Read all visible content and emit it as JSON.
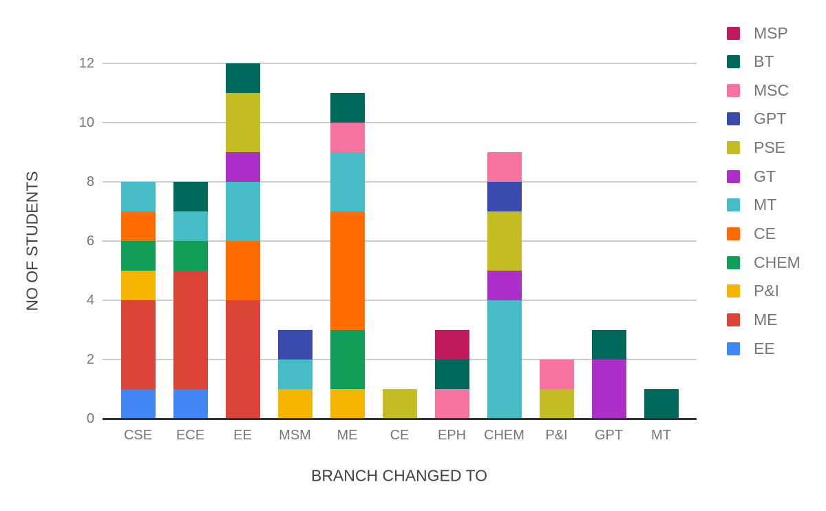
{
  "chart_data": {
    "type": "bar",
    "stacked": true,
    "title": "",
    "xlabel": "BRANCH CHANGED TO",
    "ylabel": "NO OF STUDENTS",
    "ylim": [
      0,
      12
    ],
    "yticks": [
      0,
      2,
      4,
      6,
      8,
      10,
      12
    ],
    "grid": true,
    "legend_position": "right",
    "legend_order_top_to_bottom": [
      "MSP",
      "BT",
      "MSC",
      "GPT",
      "PSE",
      "GT",
      "MT",
      "CE",
      "CHEM",
      "P&I",
      "ME",
      "EE"
    ],
    "categories": [
      "CSE",
      "ECE",
      "EE",
      "MSM",
      "ME",
      "CE",
      "EPH",
      "CHEM",
      "P&I",
      "GPT",
      "MT"
    ],
    "category_totals": [
      8,
      8,
      12,
      3,
      11,
      1,
      3,
      9,
      2,
      3,
      1
    ],
    "series": [
      {
        "name": "EE",
        "color": "#4285F4",
        "values": [
          1,
          1,
          0,
          0,
          0,
          0,
          0,
          0,
          0,
          0,
          0
        ]
      },
      {
        "name": "ME",
        "color": "#DB4437",
        "values": [
          3,
          4,
          4,
          0,
          0,
          0,
          0,
          0,
          0,
          0,
          0
        ]
      },
      {
        "name": "P&I",
        "color": "#F4B400",
        "values": [
          1,
          0,
          0,
          1,
          1,
          0,
          0,
          0,
          0,
          0,
          0
        ]
      },
      {
        "name": "CHEM",
        "color": "#0F9D58",
        "values": [
          1,
          1,
          0,
          0,
          2,
          0,
          0,
          0,
          0,
          0,
          0
        ]
      },
      {
        "name": "CE",
        "color": "#FF6D01",
        "values": [
          1,
          0,
          2,
          0,
          4,
          0,
          0,
          0,
          0,
          0,
          0
        ]
      },
      {
        "name": "MT",
        "color": "#46BDC6",
        "values": [
          1,
          1,
          2,
          1,
          2,
          0,
          0,
          4,
          0,
          0,
          0
        ]
      },
      {
        "name": "GT",
        "color": "#AB2FC8",
        "values": [
          0,
          0,
          1,
          0,
          0,
          0,
          0,
          1,
          0,
          2,
          0
        ]
      },
      {
        "name": "PSE",
        "color": "#C3BD23",
        "values": [
          0,
          0,
          2,
          0,
          0,
          1,
          0,
          2,
          1,
          0,
          0
        ]
      },
      {
        "name": "GPT",
        "color": "#3A4AAF",
        "values": [
          0,
          0,
          0,
          1,
          0,
          0,
          0,
          1,
          0,
          0,
          0
        ]
      },
      {
        "name": "MSC",
        "color": "#F7739F",
        "values": [
          0,
          0,
          0,
          0,
          1,
          0,
          1,
          1,
          1,
          0,
          0
        ]
      },
      {
        "name": "BT",
        "color": "#00695C",
        "values": [
          0,
          1,
          1,
          0,
          1,
          0,
          1,
          0,
          0,
          1,
          1
        ]
      },
      {
        "name": "MSP",
        "color": "#C0195C",
        "values": [
          0,
          0,
          0,
          0,
          0,
          0,
          1,
          0,
          0,
          0,
          0
        ]
      }
    ]
  },
  "colors": {
    "background": "#FFFFFF",
    "gridline": "#CCCCCC",
    "baseline": "#333333",
    "tick_text": "#757575",
    "category_text": "#757575",
    "legend_text": "#757575",
    "axis_title_text": "#424242"
  }
}
